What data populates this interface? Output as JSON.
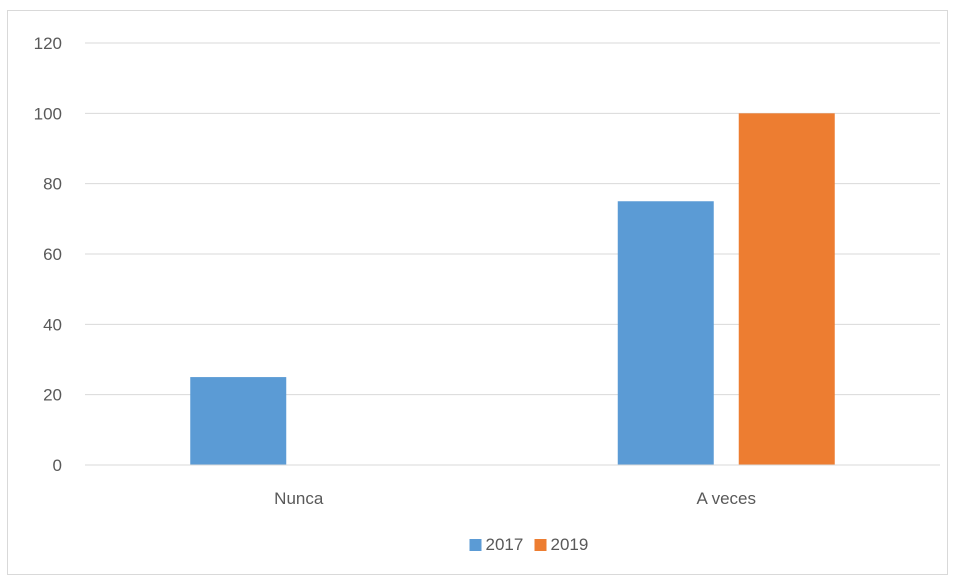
{
  "chart_data": {
    "type": "bar",
    "title": "",
    "xlabel": "",
    "ylabel": "",
    "categories": [
      "Nunca",
      "A veces"
    ],
    "series": [
      {
        "name": "2017",
        "values": [
          25,
          75
        ],
        "color": "#5b9bd5"
      },
      {
        "name": "2019",
        "values": [
          0,
          100
        ],
        "color": "#ed7d31"
      }
    ],
    "ylim": [
      0,
      120
    ],
    "yticks": [
      0,
      20,
      40,
      60,
      80,
      100,
      120
    ],
    "grid": true,
    "legend_position": "bottom"
  }
}
